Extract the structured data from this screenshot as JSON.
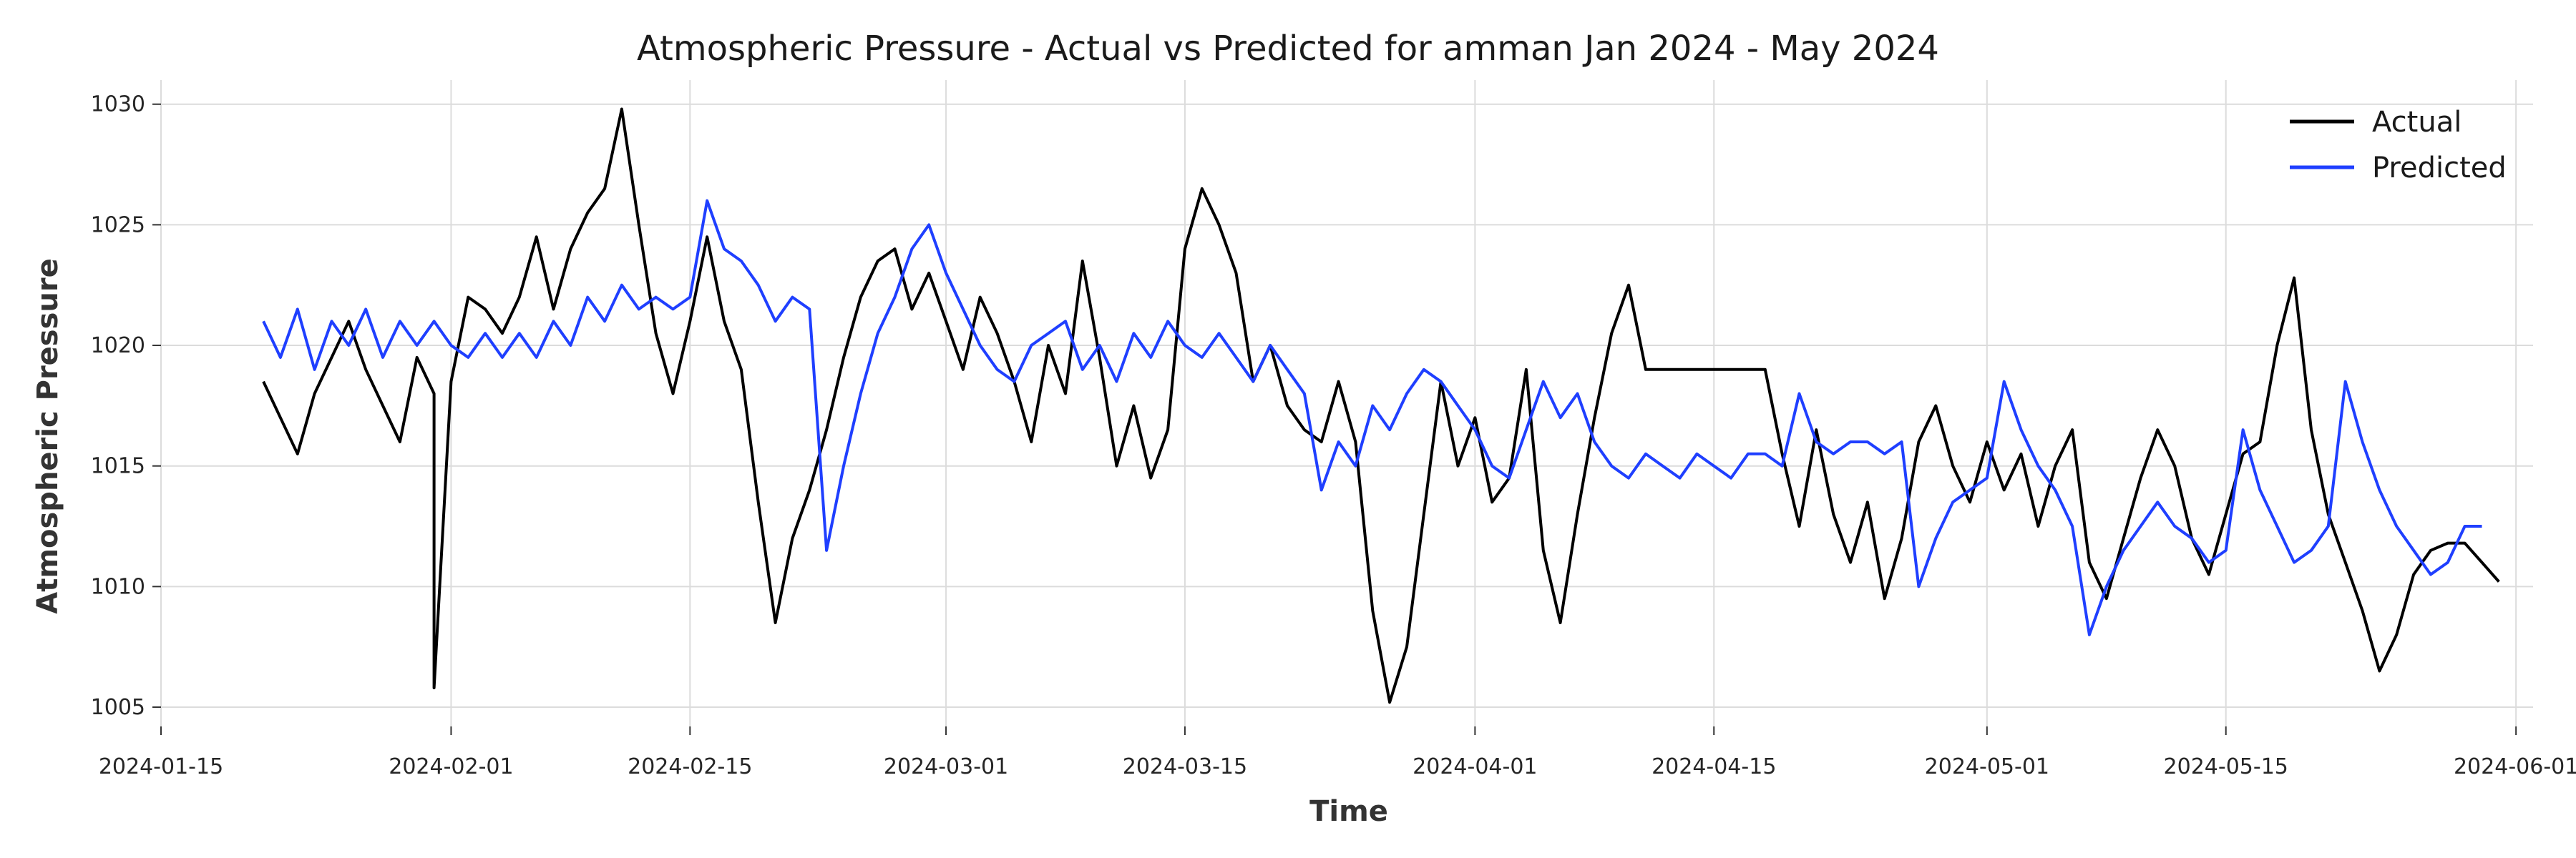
{
  "chart_data": {
    "type": "line",
    "title": "Atmospheric Pressure - Actual vs Predicted for amman Jan 2024 - May 2024",
    "xlabel": "Time",
    "ylabel": "Atmospheric Pressure",
    "x_range": [
      "2024-01-15",
      "2024-06-02"
    ],
    "ylim": [
      1004.2,
      1031.0
    ],
    "x_ticks": [
      "2024-01-15",
      "2024-02-01",
      "2024-02-15",
      "2024-03-01",
      "2024-03-15",
      "2024-04-01",
      "2024-04-15",
      "2024-05-01",
      "2024-05-15",
      "2024-06-01"
    ],
    "y_ticks": [
      1005,
      1010,
      1015,
      1020,
      1025,
      1030
    ],
    "grid": true,
    "legend_position": "top-right",
    "series": [
      {
        "name": "Actual",
        "color": "#000000",
        "points": [
          [
            "2024-01-21",
            1018.5
          ],
          [
            "2024-01-22",
            1017.0
          ],
          [
            "2024-01-23",
            1015.5
          ],
          [
            "2024-01-24",
            1018.0
          ],
          [
            "2024-01-25",
            1019.5
          ],
          [
            "2024-01-26",
            1021.0
          ],
          [
            "2024-01-27",
            1019.0
          ],
          [
            "2024-01-28",
            1017.5
          ],
          [
            "2024-01-29",
            1016.0
          ],
          [
            "2024-01-30",
            1019.5
          ],
          [
            "2024-01-31",
            1018.0
          ],
          [
            "2024-01-31",
            1005.8
          ],
          [
            "2024-02-01",
            1018.5
          ],
          [
            "2024-02-02",
            1022.0
          ],
          [
            "2024-02-03",
            1021.5
          ],
          [
            "2024-02-04",
            1020.5
          ],
          [
            "2024-02-05",
            1022.0
          ],
          [
            "2024-02-06",
            1024.5
          ],
          [
            "2024-02-07",
            1021.5
          ],
          [
            "2024-02-08",
            1024.0
          ],
          [
            "2024-02-09",
            1025.5
          ],
          [
            "2024-02-10",
            1026.5
          ],
          [
            "2024-02-11",
            1029.8
          ],
          [
            "2024-02-12",
            1025.0
          ],
          [
            "2024-02-13",
            1020.5
          ],
          [
            "2024-02-14",
            1018.0
          ],
          [
            "2024-02-15",
            1021.0
          ],
          [
            "2024-02-16",
            1024.5
          ],
          [
            "2024-02-17",
            1021.0
          ],
          [
            "2024-02-18",
            1019.0
          ],
          [
            "2024-02-19",
            1013.5
          ],
          [
            "2024-02-20",
            1008.5
          ],
          [
            "2024-02-21",
            1012.0
          ],
          [
            "2024-02-22",
            1014.0
          ],
          [
            "2024-02-23",
            1016.5
          ],
          [
            "2024-02-24",
            1019.5
          ],
          [
            "2024-02-25",
            1022.0
          ],
          [
            "2024-02-26",
            1023.5
          ],
          [
            "2024-02-27",
            1024.0
          ],
          [
            "2024-02-28",
            1021.5
          ],
          [
            "2024-02-29",
            1023.0
          ],
          [
            "2024-03-01",
            1021.0
          ],
          [
            "2024-03-02",
            1019.0
          ],
          [
            "2024-03-03",
            1022.0
          ],
          [
            "2024-03-04",
            1020.5
          ],
          [
            "2024-03-05",
            1018.5
          ],
          [
            "2024-03-06",
            1016.0
          ],
          [
            "2024-03-07",
            1020.0
          ],
          [
            "2024-03-08",
            1018.0
          ],
          [
            "2024-03-09",
            1023.5
          ],
          [
            "2024-03-10",
            1019.5
          ],
          [
            "2024-03-11",
            1015.0
          ],
          [
            "2024-03-12",
            1017.5
          ],
          [
            "2024-03-13",
            1014.5
          ],
          [
            "2024-03-14",
            1016.5
          ],
          [
            "2024-03-15",
            1024.0
          ],
          [
            "2024-03-16",
            1026.5
          ],
          [
            "2024-03-17",
            1025.0
          ],
          [
            "2024-03-18",
            1023.0
          ],
          [
            "2024-03-19",
            1018.5
          ],
          [
            "2024-03-20",
            1020.0
          ],
          [
            "2024-03-21",
            1017.5
          ],
          [
            "2024-03-22",
            1016.5
          ],
          [
            "2024-03-23",
            1016.0
          ],
          [
            "2024-03-24",
            1018.5
          ],
          [
            "2024-03-25",
            1016.0
          ],
          [
            "2024-03-26",
            1009.0
          ],
          [
            "2024-03-27",
            1005.2
          ],
          [
            "2024-03-28",
            1007.5
          ],
          [
            "2024-03-29",
            1013.0
          ],
          [
            "2024-03-30",
            1018.5
          ],
          [
            "2024-03-31",
            1015.0
          ],
          [
            "2024-04-01",
            1017.0
          ],
          [
            "2024-04-02",
            1013.5
          ],
          [
            "2024-04-03",
            1014.5
          ],
          [
            "2024-04-04",
            1019.0
          ],
          [
            "2024-04-05",
            1011.5
          ],
          [
            "2024-04-06",
            1008.5
          ],
          [
            "2024-04-07",
            1013.0
          ],
          [
            "2024-04-08",
            1017.0
          ],
          [
            "2024-04-09",
            1020.5
          ],
          [
            "2024-04-10",
            1022.5
          ],
          [
            "2024-04-11",
            1019.0
          ],
          [
            "2024-04-18",
            1019.0
          ],
          [
            "2024-04-19",
            1015.5
          ],
          [
            "2024-04-20",
            1012.5
          ],
          [
            "2024-04-21",
            1016.5
          ],
          [
            "2024-04-22",
            1013.0
          ],
          [
            "2024-04-23",
            1011.0
          ],
          [
            "2024-04-24",
            1013.5
          ],
          [
            "2024-04-25",
            1009.5
          ],
          [
            "2024-04-26",
            1012.0
          ],
          [
            "2024-04-27",
            1016.0
          ],
          [
            "2024-04-28",
            1017.5
          ],
          [
            "2024-04-29",
            1015.0
          ],
          [
            "2024-04-30",
            1013.5
          ],
          [
            "2024-05-01",
            1016.0
          ],
          [
            "2024-05-02",
            1014.0
          ],
          [
            "2024-05-03",
            1015.5
          ],
          [
            "2024-05-04",
            1012.5
          ],
          [
            "2024-05-05",
            1015.0
          ],
          [
            "2024-05-06",
            1016.5
          ],
          [
            "2024-05-07",
            1011.0
          ],
          [
            "2024-05-08",
            1009.5
          ],
          [
            "2024-05-09",
            1012.0
          ],
          [
            "2024-05-10",
            1014.5
          ],
          [
            "2024-05-11",
            1016.5
          ],
          [
            "2024-05-12",
            1015.0
          ],
          [
            "2024-05-13",
            1012.0
          ],
          [
            "2024-05-14",
            1010.5
          ],
          [
            "2024-05-15",
            1013.0
          ],
          [
            "2024-05-16",
            1015.5
          ],
          [
            "2024-05-17",
            1016.0
          ],
          [
            "2024-05-18",
            1020.0
          ],
          [
            "2024-05-19",
            1022.8
          ],
          [
            "2024-05-20",
            1016.5
          ],
          [
            "2024-05-21",
            1013.0
          ],
          [
            "2024-05-22",
            1011.0
          ],
          [
            "2024-05-23",
            1009.0
          ],
          [
            "2024-05-24",
            1006.5
          ],
          [
            "2024-05-25",
            1008.0
          ],
          [
            "2024-05-26",
            1010.5
          ],
          [
            "2024-05-27",
            1011.5
          ],
          [
            "2024-05-28",
            1011.8
          ],
          [
            "2024-05-29",
            1011.8
          ],
          [
            "2024-05-30",
            1011.0
          ],
          [
            "2024-05-31",
            1010.2
          ],
          [
            "2024-05-31",
            1010.2
          ]
        ]
      },
      {
        "name": "Predicted",
        "color": "#1f3fff",
        "points": [
          [
            "2024-01-21",
            1021.0
          ],
          [
            "2024-01-22",
            1019.5
          ],
          [
            "2024-01-23",
            1021.5
          ],
          [
            "2024-01-24",
            1019.0
          ],
          [
            "2024-01-25",
            1021.0
          ],
          [
            "2024-01-26",
            1020.0
          ],
          [
            "2024-01-27",
            1021.5
          ],
          [
            "2024-01-28",
            1019.5
          ],
          [
            "2024-01-29",
            1021.0
          ],
          [
            "2024-01-30",
            1020.0
          ],
          [
            "2024-01-31",
            1021.0
          ],
          [
            "2024-02-01",
            1020.0
          ],
          [
            "2024-02-02",
            1019.5
          ],
          [
            "2024-02-03",
            1020.5
          ],
          [
            "2024-02-04",
            1019.5
          ],
          [
            "2024-02-05",
            1020.5
          ],
          [
            "2024-02-06",
            1019.5
          ],
          [
            "2024-02-07",
            1021.0
          ],
          [
            "2024-02-08",
            1020.0
          ],
          [
            "2024-02-09",
            1022.0
          ],
          [
            "2024-02-10",
            1021.0
          ],
          [
            "2024-02-11",
            1022.5
          ],
          [
            "2024-02-12",
            1021.5
          ],
          [
            "2024-02-13",
            1022.0
          ],
          [
            "2024-02-14",
            1021.5
          ],
          [
            "2024-02-15",
            1022.0
          ],
          [
            "2024-02-16",
            1026.0
          ],
          [
            "2024-02-17",
            1024.0
          ],
          [
            "2024-02-18",
            1023.5
          ],
          [
            "2024-02-19",
            1022.5
          ],
          [
            "2024-02-20",
            1021.0
          ],
          [
            "2024-02-21",
            1022.0
          ],
          [
            "2024-02-22",
            1021.5
          ],
          [
            "2024-02-23",
            1011.5
          ],
          [
            "2024-02-24",
            1015.0
          ],
          [
            "2024-02-25",
            1018.0
          ],
          [
            "2024-02-26",
            1020.5
          ],
          [
            "2024-02-27",
            1022.0
          ],
          [
            "2024-02-28",
            1024.0
          ],
          [
            "2024-02-29",
            1025.0
          ],
          [
            "2024-03-01",
            1023.0
          ],
          [
            "2024-03-02",
            1021.5
          ],
          [
            "2024-03-03",
            1020.0
          ],
          [
            "2024-03-04",
            1019.0
          ],
          [
            "2024-03-05",
            1018.5
          ],
          [
            "2024-03-06",
            1020.0
          ],
          [
            "2024-03-07",
            1020.5
          ],
          [
            "2024-03-08",
            1021.0
          ],
          [
            "2024-03-09",
            1019.0
          ],
          [
            "2024-03-10",
            1020.0
          ],
          [
            "2024-03-11",
            1018.5
          ],
          [
            "2024-03-12",
            1020.5
          ],
          [
            "2024-03-13",
            1019.5
          ],
          [
            "2024-03-14",
            1021.0
          ],
          [
            "2024-03-15",
            1020.0
          ],
          [
            "2024-03-16",
            1019.5
          ],
          [
            "2024-03-17",
            1020.5
          ],
          [
            "2024-03-18",
            1019.5
          ],
          [
            "2024-03-19",
            1018.5
          ],
          [
            "2024-03-20",
            1020.0
          ],
          [
            "2024-03-21",
            1019.0
          ],
          [
            "2024-03-22",
            1018.0
          ],
          [
            "2024-03-23",
            1014.0
          ],
          [
            "2024-03-24",
            1016.0
          ],
          [
            "2024-03-25",
            1015.0
          ],
          [
            "2024-03-26",
            1017.5
          ],
          [
            "2024-03-27",
            1016.5
          ],
          [
            "2024-03-28",
            1018.0
          ],
          [
            "2024-03-29",
            1019.0
          ],
          [
            "2024-03-30",
            1018.5
          ],
          [
            "2024-03-31",
            1017.5
          ],
          [
            "2024-04-01",
            1016.5
          ],
          [
            "2024-04-02",
            1015.0
          ],
          [
            "2024-04-03",
            1014.5
          ],
          [
            "2024-04-04",
            1016.5
          ],
          [
            "2024-04-05",
            1018.5
          ],
          [
            "2024-04-06",
            1017.0
          ],
          [
            "2024-04-07",
            1018.0
          ],
          [
            "2024-04-08",
            1016.0
          ],
          [
            "2024-04-09",
            1015.0
          ],
          [
            "2024-04-10",
            1014.5
          ],
          [
            "2024-04-11",
            1015.5
          ],
          [
            "2024-04-12",
            1015.0
          ],
          [
            "2024-04-13",
            1014.5
          ],
          [
            "2024-04-14",
            1015.5
          ],
          [
            "2024-04-15",
            1015.0
          ],
          [
            "2024-04-16",
            1014.5
          ],
          [
            "2024-04-17",
            1015.5
          ],
          [
            "2024-04-18",
            1015.5
          ],
          [
            "2024-04-19",
            1015.0
          ],
          [
            "2024-04-20",
            1018.0
          ],
          [
            "2024-04-21",
            1016.0
          ],
          [
            "2024-04-22",
            1015.5
          ],
          [
            "2024-04-23",
            1016.0
          ],
          [
            "2024-04-24",
            1016.0
          ],
          [
            "2024-04-25",
            1015.5
          ],
          [
            "2024-04-26",
            1016.0
          ],
          [
            "2024-04-27",
            1010.0
          ],
          [
            "2024-04-28",
            1012.0
          ],
          [
            "2024-04-29",
            1013.5
          ],
          [
            "2024-04-30",
            1014.0
          ],
          [
            "2024-05-01",
            1014.5
          ],
          [
            "2024-05-02",
            1018.5
          ],
          [
            "2024-05-03",
            1016.5
          ],
          [
            "2024-05-04",
            1015.0
          ],
          [
            "2024-05-05",
            1014.0
          ],
          [
            "2024-05-06",
            1012.5
          ],
          [
            "2024-05-07",
            1008.0
          ],
          [
            "2024-05-08",
            1010.0
          ],
          [
            "2024-05-09",
            1011.5
          ],
          [
            "2024-05-10",
            1012.5
          ],
          [
            "2024-05-11",
            1013.5
          ],
          [
            "2024-05-12",
            1012.5
          ],
          [
            "2024-05-13",
            1012.0
          ],
          [
            "2024-05-14",
            1011.0
          ],
          [
            "2024-05-15",
            1011.5
          ],
          [
            "2024-05-16",
            1016.5
          ],
          [
            "2024-05-17",
            1014.0
          ],
          [
            "2024-05-18",
            1012.5
          ],
          [
            "2024-05-19",
            1011.0
          ],
          [
            "2024-05-20",
            1011.5
          ],
          [
            "2024-05-21",
            1012.5
          ],
          [
            "2024-05-22",
            1018.5
          ],
          [
            "2024-05-23",
            1016.0
          ],
          [
            "2024-05-24",
            1014.0
          ],
          [
            "2024-05-25",
            1012.5
          ],
          [
            "2024-05-26",
            1011.5
          ],
          [
            "2024-05-27",
            1010.5
          ],
          [
            "2024-05-28",
            1011.0
          ],
          [
            "2024-05-29",
            1012.5
          ],
          [
            "2024-05-30",
            1012.5
          ]
        ]
      }
    ]
  }
}
